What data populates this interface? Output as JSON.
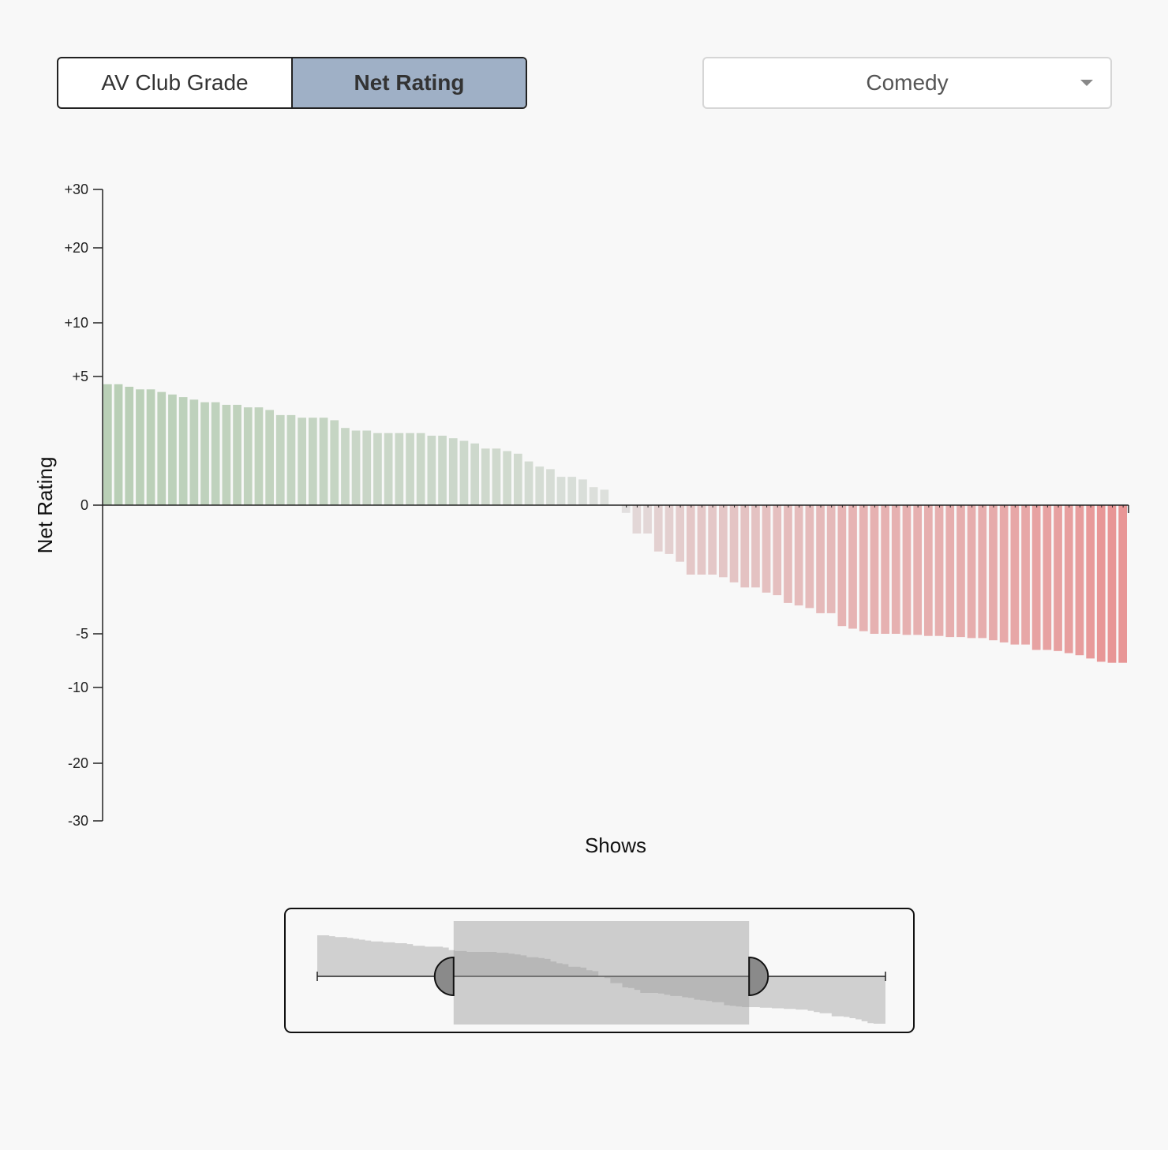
{
  "toggle": {
    "options": [
      "AV Club Grade",
      "Net Rating"
    ],
    "active": "Net Rating"
  },
  "genre_select": {
    "selected": "Comedy",
    "icon": "chevron-down-icon"
  },
  "colors": {
    "positive": "#b9cfb6",
    "neutral": "#e2e2e2",
    "negative": "#e89696",
    "toggle_active": "#9fb0c6",
    "background": "#f8f8f8"
  },
  "chart_data": {
    "type": "bar",
    "title": "",
    "xlabel": "Shows",
    "ylabel": "Net Rating",
    "ylim": [
      -30,
      30
    ],
    "y_scale": "symlog",
    "y_ticks": [
      {
        "value": 30,
        "label": "+30"
      },
      {
        "value": 20,
        "label": "+20"
      },
      {
        "value": 10,
        "label": "+10"
      },
      {
        "value": 5,
        "label": "+5"
      },
      {
        "value": 0,
        "label": "0"
      },
      {
        "value": -5,
        "label": "-5"
      },
      {
        "value": -10,
        "label": "-10"
      },
      {
        "value": -20,
        "label": "-20"
      },
      {
        "value": -30,
        "label": "-30"
      }
    ],
    "x_tick_labels": "none",
    "values": [
      4.7,
      4.7,
      4.6,
      4.5,
      4.5,
      4.4,
      4.3,
      4.2,
      4.1,
      4.0,
      4.0,
      3.9,
      3.9,
      3.8,
      3.8,
      3.7,
      3.5,
      3.5,
      3.4,
      3.4,
      3.4,
      3.3,
      3.0,
      2.9,
      2.9,
      2.8,
      2.8,
      2.8,
      2.8,
      2.8,
      2.7,
      2.7,
      2.6,
      2.5,
      2.4,
      2.2,
      2.2,
      2.1,
      2.0,
      1.7,
      1.5,
      1.4,
      1.1,
      1.1,
      1.0,
      0.7,
      0.6,
      0,
      -0.3,
      -1.1,
      -1.1,
      -1.8,
      -1.9,
      -2.2,
      -2.7,
      -2.7,
      -2.7,
      -2.8,
      -3.0,
      -3.2,
      -3.2,
      -3.4,
      -3.5,
      -3.8,
      -3.9,
      -4.0,
      -4.2,
      -4.2,
      -4.7,
      -4.8,
      -4.9,
      -5.0,
      -5.0,
      -5.0,
      -5.1,
      -5.1,
      -5.2,
      -5.2,
      -5.3,
      -5.3,
      -5.4,
      -5.4,
      -5.6,
      -5.8,
      -6.0,
      -6.0,
      -6.5,
      -6.5,
      -6.6,
      -6.8,
      -7.0,
      -7.3,
      -7.6,
      -7.7,
      -7.7
    ],
    "grid": false,
    "legend": "none"
  },
  "brush": {
    "selection_fraction": [
      0.24,
      0.76
    ],
    "handle_icon": "half-circle-handle-icon"
  }
}
